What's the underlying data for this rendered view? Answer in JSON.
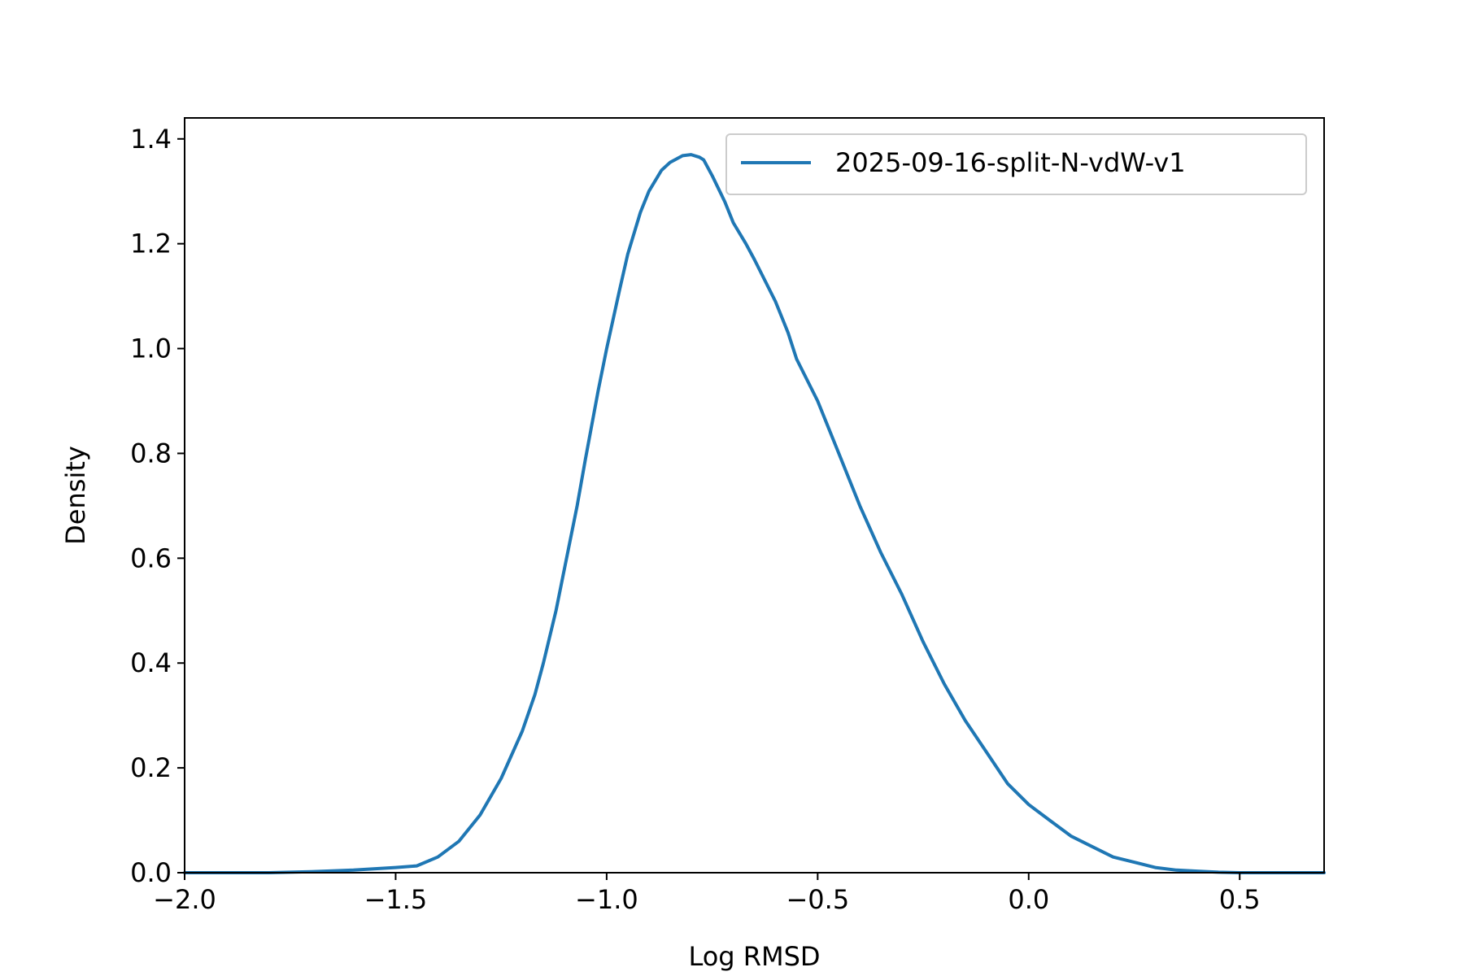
{
  "chart_data": {
    "type": "line",
    "title": "",
    "xlabel": "Log RMSD",
    "ylabel": "Density",
    "xlim": [
      -2.0,
      0.7
    ],
    "ylim": [
      0.0,
      1.44
    ],
    "xticks": [
      {
        "value": -2.0,
        "label": "−2.0"
      },
      {
        "value": -1.5,
        "label": "−1.5"
      },
      {
        "value": -1.0,
        "label": "−1.0"
      },
      {
        "value": -0.5,
        "label": "−0.5"
      },
      {
        "value": 0.0,
        "label": "0.0"
      },
      {
        "value": 0.5,
        "label": "0.5"
      }
    ],
    "yticks": [
      {
        "value": 0.0,
        "label": "0.0"
      },
      {
        "value": 0.2,
        "label": "0.2"
      },
      {
        "value": 0.4,
        "label": "0.4"
      },
      {
        "value": 0.6,
        "label": "0.6"
      },
      {
        "value": 0.8,
        "label": "0.8"
      },
      {
        "value": 1.0,
        "label": "1.0"
      },
      {
        "value": 1.2,
        "label": "1.2"
      },
      {
        "value": 1.4,
        "label": "1.4"
      }
    ],
    "grid": false,
    "legend_position": "top-right",
    "series": [
      {
        "name": "2025-09-16-split-N-vdW-v1",
        "color": "#1f77b4",
        "x": [
          -2.0,
          -1.8,
          -1.7,
          -1.6,
          -1.5,
          -1.45,
          -1.4,
          -1.35,
          -1.3,
          -1.25,
          -1.2,
          -1.17,
          -1.15,
          -1.12,
          -1.1,
          -1.07,
          -1.05,
          -1.02,
          -1.0,
          -0.97,
          -0.95,
          -0.92,
          -0.9,
          -0.87,
          -0.85,
          -0.82,
          -0.8,
          -0.78,
          -0.77,
          -0.75,
          -0.72,
          -0.7,
          -0.67,
          -0.65,
          -0.6,
          -0.57,
          -0.55,
          -0.5,
          -0.45,
          -0.4,
          -0.35,
          -0.3,
          -0.25,
          -0.2,
          -0.15,
          -0.1,
          -0.05,
          0.0,
          0.05,
          0.1,
          0.15,
          0.2,
          0.25,
          0.3,
          0.35,
          0.4,
          0.45,
          0.5,
          0.6,
          0.7
        ],
        "y": [
          0.0,
          0.0,
          0.002,
          0.005,
          0.01,
          0.013,
          0.03,
          0.06,
          0.11,
          0.18,
          0.27,
          0.34,
          0.4,
          0.5,
          0.58,
          0.7,
          0.79,
          0.92,
          1.0,
          1.11,
          1.18,
          1.26,
          1.3,
          1.34,
          1.355,
          1.368,
          1.37,
          1.365,
          1.36,
          1.33,
          1.28,
          1.24,
          1.2,
          1.17,
          1.09,
          1.03,
          0.98,
          0.9,
          0.8,
          0.7,
          0.61,
          0.53,
          0.44,
          0.36,
          0.29,
          0.23,
          0.17,
          0.13,
          0.1,
          0.07,
          0.05,
          0.03,
          0.02,
          0.01,
          0.005,
          0.003,
          0.001,
          0.0,
          0.0,
          0.0
        ]
      }
    ]
  }
}
